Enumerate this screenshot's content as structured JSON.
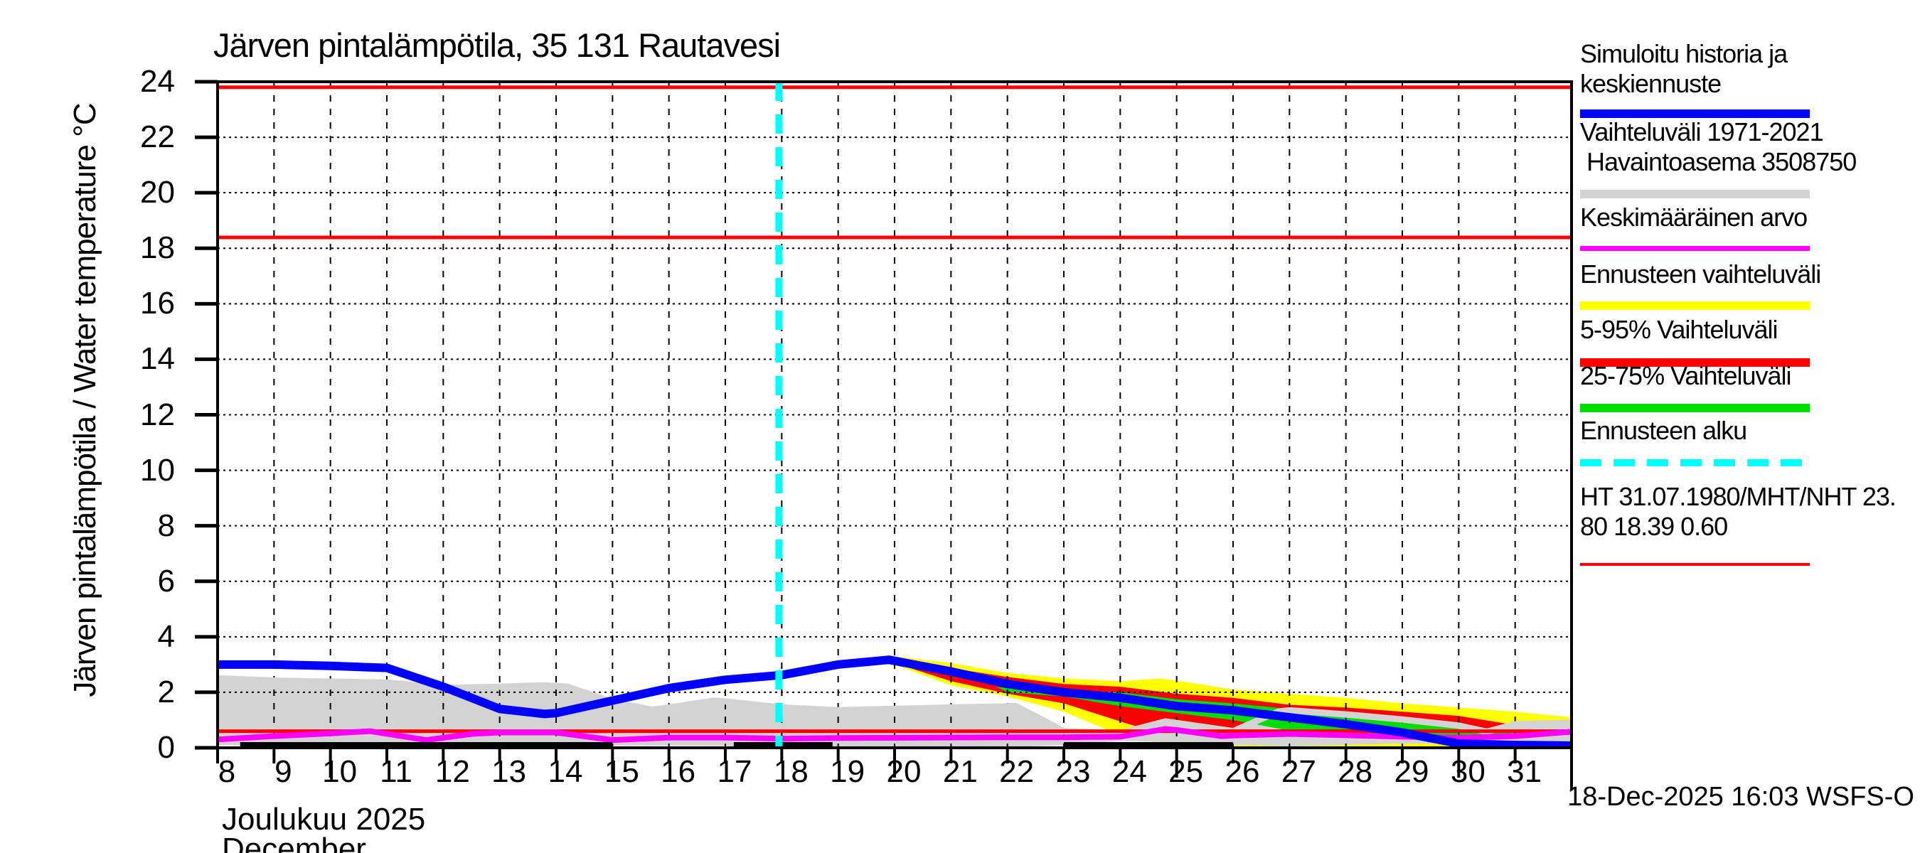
{
  "title": "Järven pintalämpötila, 35 131 Rautavesi",
  "footer": "18-Dec-2025 16:03 WSFS-O",
  "y_axis": {
    "label": "Järven pintalämpötila / Water temperature °C",
    "ticks": [
      0,
      2,
      4,
      6,
      8,
      10,
      12,
      14,
      16,
      18,
      20,
      22,
      24
    ],
    "range": [
      0,
      24
    ]
  },
  "x_axis": {
    "label_fi": "Joulukuu 2025",
    "label_en": "December",
    "ticks": [
      8,
      9,
      10,
      11,
      12,
      13,
      14,
      15,
      16,
      17,
      18,
      19,
      20,
      21,
      22,
      23,
      24,
      25,
      26,
      27,
      28,
      29,
      30,
      31
    ],
    "major_ticks": [
      10,
      15,
      20,
      25,
      30
    ],
    "range": [
      8,
      32
    ]
  },
  "colors": {
    "blue": "#0000ff",
    "gray": "#d3d3d3",
    "magenta": "#ff00ff",
    "yellow": "#ffff00",
    "red": "#ff0000",
    "green": "#00dd00",
    "cyan": "#00ffff",
    "black": "#000000"
  },
  "legend": {
    "entries": [
      {
        "id": "simulated-history",
        "lines": [
          "Simuloitu historia ja",
          "keskiennuste"
        ],
        "color": "blue",
        "style": "thick"
      },
      {
        "id": "observed-range",
        "lines": [
          "Vaihteluväli 1971-2021",
          " Havaintoasema 3508750"
        ],
        "color": "gray",
        "style": "thick"
      },
      {
        "id": "mean-value",
        "lines": [
          "Keskimääräinen arvo"
        ],
        "color": "magenta",
        "style": "medium"
      },
      {
        "id": "forecast-range",
        "lines": [
          "Ennusteen vaihteluväli"
        ],
        "color": "yellow",
        "style": "thick"
      },
      {
        "id": "range-5-95",
        "lines": [
          "5-95% Vaihteluväli"
        ],
        "color": "red",
        "style": "thick"
      },
      {
        "id": "range-25-75",
        "lines": [
          "25-75% Vaihteluväli"
        ],
        "color": "green",
        "style": "thick"
      },
      {
        "id": "forecast-start",
        "lines": [
          "Ennusteen alku"
        ],
        "color": "cyan",
        "style": "dashed"
      },
      {
        "id": "ht-reference",
        "lines": [
          "HT 31.07.1980/MHT/NHT 23.",
          "80 18.39 0.60"
        ],
        "color": "red",
        "style": "thin"
      }
    ]
  },
  "chart_data": {
    "type": "line",
    "title": "Järven pintalämpötila, 35 131 Rautavesi",
    "xlabel": "Joulukuu 2025 / December",
    "ylabel": "Järven pintalämpötila / Water temperature °C",
    "xlim": [
      8,
      32
    ],
    "ylim": [
      0,
      24
    ],
    "grid": true,
    "legend_position": "right",
    "forecast_start_day": 17.95,
    "ref_lines": [
      {
        "name": "HT",
        "value": 23.8
      },
      {
        "name": "MHT",
        "value": 18.39
      },
      {
        "name": "NHT",
        "value": 0.6
      }
    ],
    "ice_cover_segments_at_zero": [
      [
        8.4,
        15.0
      ],
      [
        17.15,
        18.9
      ],
      [
        23.0,
        26.0
      ]
    ],
    "series": {
      "simulated_history_and_central_forecast": [
        [
          8,
          3.0
        ],
        [
          9,
          3.0
        ],
        [
          10,
          2.95
        ],
        [
          11,
          2.88
        ],
        [
          12,
          2.2
        ],
        [
          13,
          1.4
        ],
        [
          13.8,
          1.22
        ],
        [
          14,
          1.25
        ],
        [
          15,
          1.7
        ],
        [
          16,
          2.15
        ],
        [
          17,
          2.45
        ],
        [
          18,
          2.62
        ],
        [
          19,
          3.0
        ],
        [
          19.9,
          3.17
        ],
        [
          21,
          2.75
        ],
        [
          22,
          2.3
        ],
        [
          23,
          2.0
        ],
        [
          24,
          1.8
        ],
        [
          25,
          1.5
        ],
        [
          26,
          1.35
        ],
        [
          27,
          1.1
        ],
        [
          28,
          0.85
        ],
        [
          29,
          0.55
        ],
        [
          30,
          0.15
        ],
        [
          31,
          0.1
        ],
        [
          32,
          0.08
        ]
      ],
      "observed_range_upper": [
        [
          8,
          2.5
        ],
        [
          9,
          2.42
        ],
        [
          10,
          2.38
        ],
        [
          11,
          2.35
        ],
        [
          12,
          2.15
        ],
        [
          13,
          2.2
        ],
        [
          13.8,
          2.25
        ],
        [
          14.2,
          2.2
        ],
        [
          15,
          1.65
        ],
        [
          15.7,
          1.37
        ],
        [
          16,
          1.45
        ],
        [
          16.8,
          1.7
        ],
        [
          17,
          1.67
        ],
        [
          18,
          1.45
        ],
        [
          19,
          1.35
        ],
        [
          20,
          1.4
        ],
        [
          21,
          1.45
        ],
        [
          22,
          1.49
        ],
        [
          22.15,
          1.5
        ],
        [
          23,
          0.6
        ],
        [
          24,
          0.52
        ],
        [
          24.8,
          0.95
        ],
        [
          26,
          0.6
        ],
        [
          26.8,
          1.3
        ],
        [
          27,
          1.35
        ],
        [
          28,
          1.2
        ],
        [
          29,
          1.02
        ],
        [
          30,
          0.8
        ],
        [
          30.5,
          0.58
        ],
        [
          31,
          0.85
        ],
        [
          32,
          0.9
        ]
      ],
      "observed_range_lower": [
        [
          8,
          0.1
        ],
        [
          9,
          0.06
        ],
        [
          10,
          0.03
        ],
        [
          11,
          0.02
        ],
        [
          14.9,
          0.02
        ],
        [
          15,
          0.08
        ],
        [
          16,
          0.08
        ],
        [
          17,
          0.07
        ],
        [
          17.3,
          0.03
        ],
        [
          22,
          0.02
        ],
        [
          23,
          0.1
        ],
        [
          24,
          0.25
        ],
        [
          25,
          0.2
        ],
        [
          26,
          0.1
        ],
        [
          27,
          0.05
        ],
        [
          28,
          0.1
        ],
        [
          29,
          0.15
        ],
        [
          30,
          0.15
        ],
        [
          31,
          0.2
        ],
        [
          32,
          0.25
        ]
      ],
      "forecast_full_range_upper": [
        [
          19.6,
          3.1
        ],
        [
          20,
          3.3
        ],
        [
          21,
          3.05
        ],
        [
          22,
          2.7
        ],
        [
          23,
          2.5
        ],
        [
          24,
          2.4
        ],
        [
          24.7,
          2.5
        ],
        [
          25,
          2.42
        ],
        [
          26,
          2.1
        ],
        [
          27,
          1.95
        ],
        [
          28,
          1.8
        ],
        [
          29,
          1.6
        ],
        [
          30,
          1.45
        ],
        [
          31,
          1.3
        ],
        [
          32,
          1.1
        ]
      ],
      "forecast_full_range_lower": [
        [
          19.6,
          3.0
        ],
        [
          20,
          3.0
        ],
        [
          21,
          2.25
        ],
        [
          22,
          1.85
        ],
        [
          23,
          1.3
        ],
        [
          24,
          0.45
        ],
        [
          25,
          0.03
        ],
        [
          26,
          0
        ],
        [
          27,
          0
        ],
        [
          28,
          0
        ],
        [
          29,
          0
        ],
        [
          30,
          0
        ],
        [
          31,
          0
        ],
        [
          32,
          0
        ]
      ],
      "range_5_95_upper": [
        [
          19.7,
          3.1
        ],
        [
          20,
          3.25
        ],
        [
          21,
          2.87
        ],
        [
          22,
          2.55
        ],
        [
          23,
          2.3
        ],
        [
          24,
          2.2
        ],
        [
          25,
          1.95
        ],
        [
          26,
          1.8
        ],
        [
          27,
          1.55
        ],
        [
          28,
          1.45
        ],
        [
          29,
          1.3
        ],
        [
          30,
          1.15
        ],
        [
          30.6,
          0.95
        ],
        [
          31,
          0.82
        ],
        [
          32,
          0.75
        ]
      ],
      "range_5_95_lower": [
        [
          19.7,
          3.05
        ],
        [
          20,
          3.05
        ],
        [
          21,
          2.4
        ],
        [
          22,
          1.95
        ],
        [
          23,
          1.6
        ],
        [
          24,
          0.95
        ],
        [
          25,
          0.32
        ],
        [
          26,
          0.3
        ],
        [
          27,
          0.3
        ],
        [
          28,
          0.28
        ],
        [
          29,
          0.26
        ],
        [
          30,
          0.24
        ],
        [
          31,
          0.3
        ],
        [
          32,
          0.55
        ]
      ],
      "range_25_75_upper": [
        [
          21.8,
          2.2
        ],
        [
          22,
          2.15
        ],
        [
          23,
          2.05
        ],
        [
          24,
          2.0
        ],
        [
          25,
          1.75
        ],
        [
          26,
          1.6
        ],
        [
          27,
          1.4
        ],
        [
          28,
          1.25
        ],
        [
          29,
          1.05
        ],
        [
          30,
          0.82
        ],
        [
          30.5,
          0.62
        ],
        [
          31,
          0.52
        ],
        [
          31.4,
          0.46
        ]
      ],
      "range_25_75_lower": [
        [
          21.8,
          2.2
        ],
        [
          22,
          2.0
        ],
        [
          23,
          1.85
        ],
        [
          24,
          1.5
        ],
        [
          25,
          1.25
        ],
        [
          26,
          1.0
        ],
        [
          27,
          0.62
        ],
        [
          28,
          0.5
        ],
        [
          29,
          0.4
        ],
        [
          30,
          0.33
        ],
        [
          31,
          0.4
        ],
        [
          31.4,
          0.46
        ]
      ],
      "long_term_average": [
        [
          8,
          0.3
        ],
        [
          9,
          0.42
        ],
        [
          10,
          0.52
        ],
        [
          10.7,
          0.6
        ],
        [
          11.7,
          0.28
        ],
        [
          12.5,
          0.5
        ],
        [
          13,
          0.55
        ],
        [
          14,
          0.55
        ],
        [
          15,
          0.28
        ],
        [
          16,
          0.37
        ],
        [
          17,
          0.37
        ],
        [
          18,
          0.33
        ],
        [
          19,
          0.35
        ],
        [
          22,
          0.38
        ],
        [
          23,
          0.38
        ],
        [
          24,
          0.4
        ],
        [
          24.8,
          0.68
        ],
        [
          25,
          0.64
        ],
        [
          25.8,
          0.42
        ],
        [
          26,
          0.44
        ],
        [
          27,
          0.5
        ],
        [
          28,
          0.45
        ],
        [
          29,
          0.4
        ],
        [
          30,
          0.36
        ],
        [
          31,
          0.42
        ],
        [
          32,
          0.58
        ]
      ]
    }
  }
}
